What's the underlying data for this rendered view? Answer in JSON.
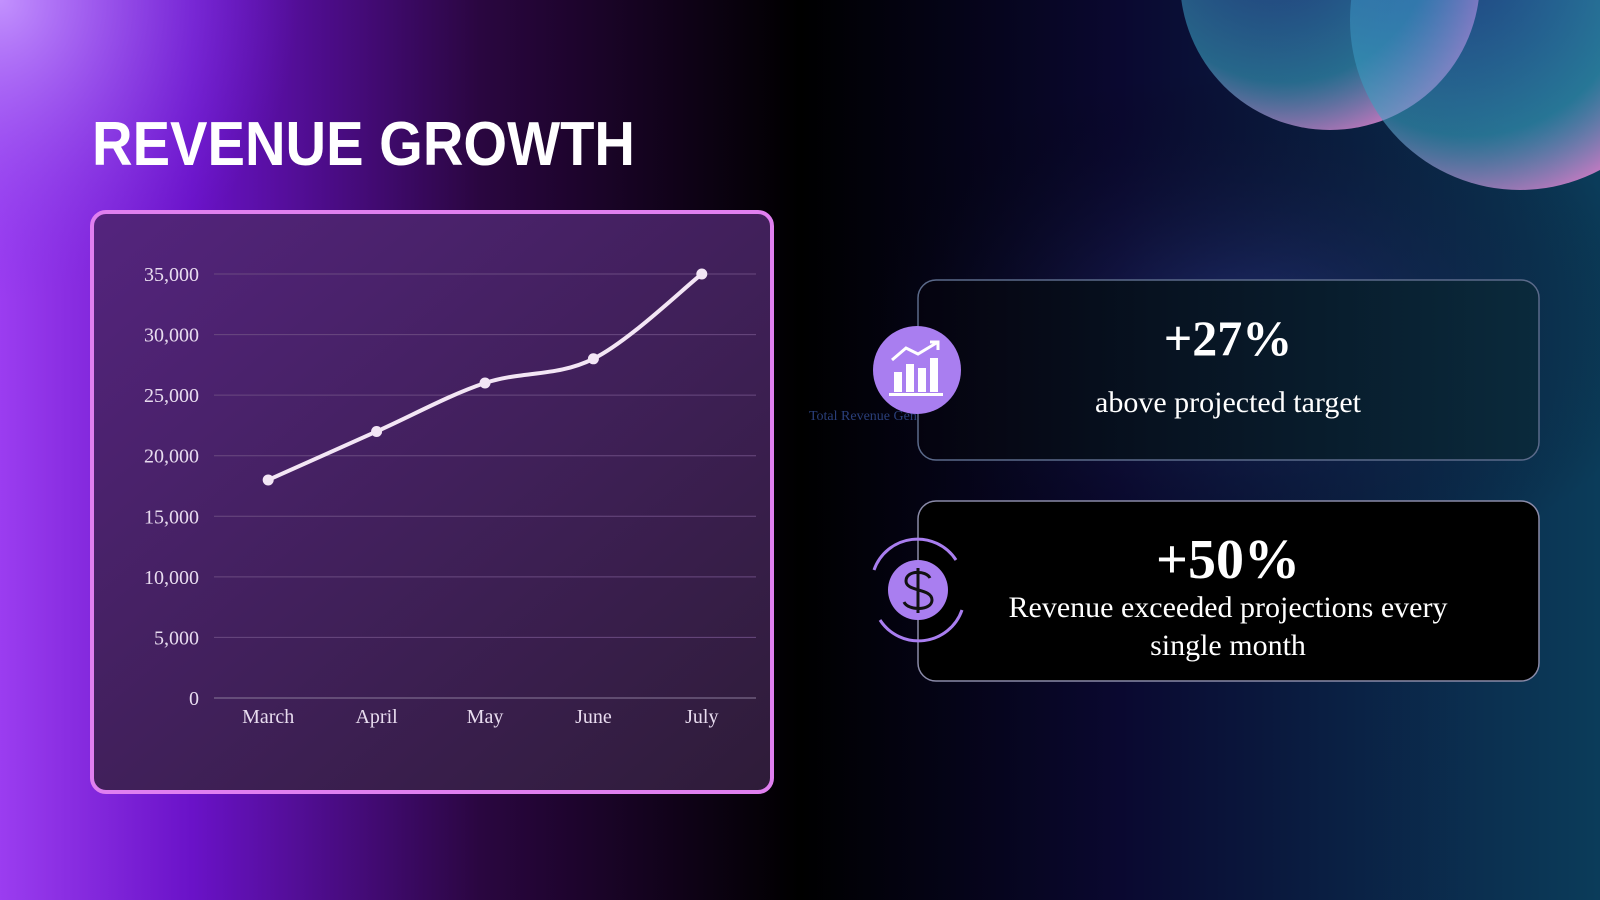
{
  "title": "REVENUE GROWTH",
  "chart_data": {
    "type": "line",
    "categories": [
      "March",
      "April",
      "May",
      "June",
      "July"
    ],
    "values": [
      18000,
      22000,
      26000,
      28000,
      35000
    ],
    "color": "#f3e6f5",
    "ylim": [
      0,
      35000
    ],
    "yticks": [
      0,
      {
        "value": 5000,
        "label": "5,000"
      },
      {
        "value": 10000,
        "label": "10,000"
      },
      {
        "value": 15000,
        "label": "15,000"
      },
      {
        "value": 20000,
        "label": "20,000"
      },
      {
        "value": 25000,
        "label": "25,000"
      },
      {
        "value": 30000,
        "label": "30,000"
      },
      {
        "value": 35000,
        "label": "35,000"
      }
    ],
    "grid": true
  },
  "icon_caption": "Total Revenue Generated",
  "stats": [
    {
      "value": "+27%",
      "text": [
        "above projected target"
      ]
    },
    {
      "value": "+50%",
      "text": [
        "Revenue exceeded projections every",
        "single month"
      ]
    }
  ]
}
